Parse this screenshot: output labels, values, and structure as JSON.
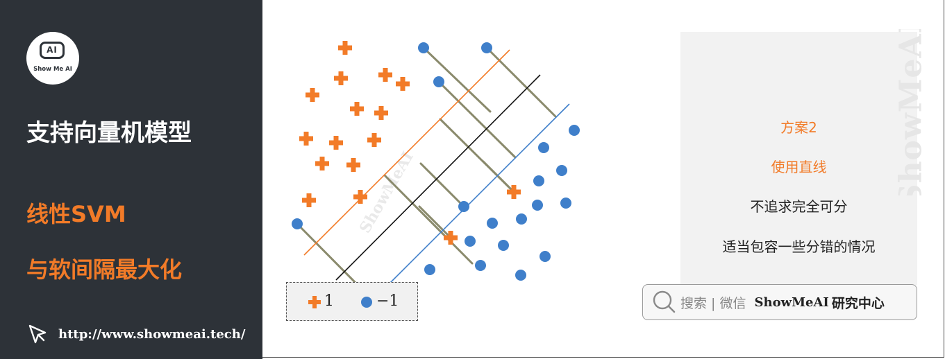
{
  "logo": {
    "face_text": "AI",
    "text": "Show Me AI"
  },
  "sidebar": {
    "title": "支持向量机模型",
    "subtitle_1": "线性SVM",
    "subtitle_2": "与软间隔最大化",
    "url": "http://www.showmeai.tech/"
  },
  "diagram_watermark": "ShowMeAI",
  "legend": {
    "plus_label": "1",
    "circle_label": "−1"
  },
  "panel": {
    "heading": "方案2",
    "line_1": "使用直线",
    "line_2": "不追求完全可分",
    "line_3": "适当包容一些分错的情况"
  },
  "vertical_watermark": "ShowMeAI",
  "search": {
    "label": "搜索 | 微信",
    "brand": "ShowMeAI",
    "center": "研究中心"
  },
  "colors": {
    "sidebar_bg": "#2d3238",
    "accent_orange": "#f27b28",
    "point_blue": "#3f7fca",
    "slack_line": "#8a8a6c",
    "panel_bg": "#f2f2f2"
  },
  "icons": {
    "plus_marker": "plus-icon",
    "circle_marker": "circle-icon",
    "search": "search-icon",
    "cursor": "cursor-icon"
  }
}
